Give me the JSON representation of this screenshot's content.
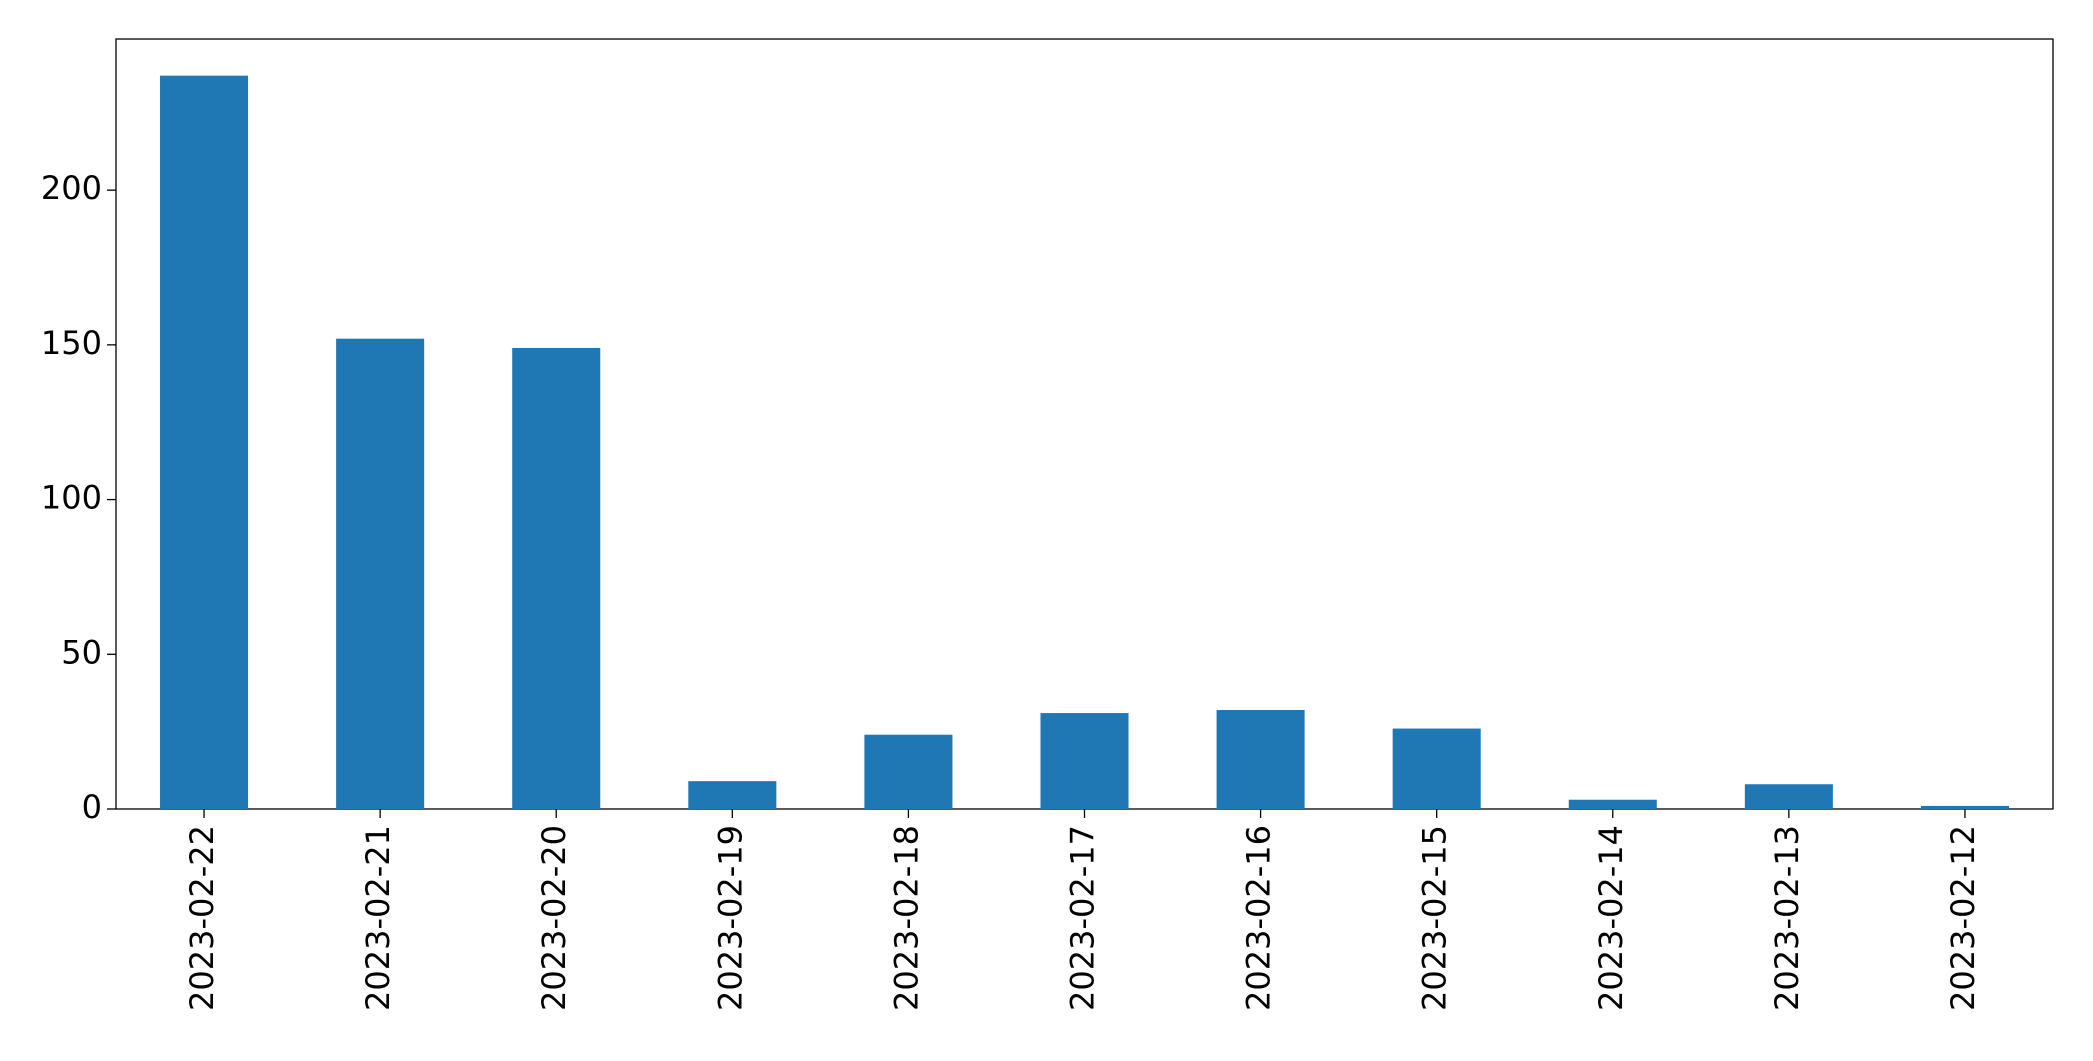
{
  "chart_data": {
    "type": "bar",
    "categories": [
      "2023-02-22",
      "2023-02-21",
      "2023-02-20",
      "2023-02-19",
      "2023-02-18",
      "2023-02-17",
      "2023-02-16",
      "2023-02-15",
      "2023-02-14",
      "2023-02-13",
      "2023-02-12"
    ],
    "values": [
      237,
      152,
      149,
      9,
      24,
      31,
      32,
      26,
      3,
      8,
      1
    ],
    "color": "#1f77b4",
    "ylim": [
      0,
      248.85
    ],
    "yticks": [
      0,
      50,
      100,
      150,
      200
    ],
    "grid": false
  }
}
